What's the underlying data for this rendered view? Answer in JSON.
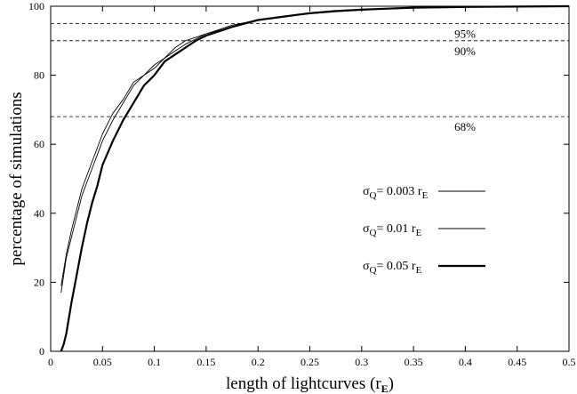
{
  "chart_data": {
    "type": "line",
    "title": "",
    "xlabel": "length of lightcurves",
    "xlabel_unit_main": "r",
    "xlabel_unit_sub": "E",
    "ylabel": "percentage of simulations",
    "xlim": [
      0,
      0.5
    ],
    "ylim": [
      0,
      100
    ],
    "xticks": [
      0,
      0.05,
      0.1,
      0.15,
      0.2,
      0.25,
      0.3,
      0.35,
      0.4,
      0.45,
      0.5
    ],
    "xtick_labels": [
      "0",
      "0.05",
      "0.1",
      "0.15",
      "0.2",
      "0.25",
      "0.3",
      "0.35",
      "0.4",
      "0.45",
      "0.5"
    ],
    "yticks": [
      0,
      20,
      40,
      60,
      80,
      100
    ],
    "ytick_labels": [
      "0",
      "20",
      "40",
      "60",
      "80",
      "100"
    ],
    "grid": false,
    "legend_position": "center-right",
    "reference_lines": [
      {
        "y": 100,
        "label": ""
      },
      {
        "y": 95,
        "label": "95%"
      },
      {
        "y": 90,
        "label": "90%"
      },
      {
        "y": 68,
        "label": "68%"
      }
    ],
    "series": [
      {
        "label_prefix": "σ",
        "label_sub": "Q",
        "label_value": "= 0.003 r",
        "label_unit_sub": "E",
        "line_weight": "thin",
        "x": [
          0.01,
          0.015,
          0.02,
          0.025,
          0.03,
          0.035,
          0.04,
          0.045,
          0.05,
          0.06,
          0.07,
          0.08,
          0.09,
          0.1,
          0.11,
          0.12,
          0.13,
          0.14,
          0.15,
          0.175,
          0.2,
          0.225,
          0.25,
          0.275,
          0.3,
          0.325,
          0.35,
          0.4,
          0.45,
          0.5
        ],
        "y": [
          19,
          28,
          35,
          41,
          47,
          51,
          55,
          59,
          63,
          69,
          73,
          78,
          80,
          83,
          85,
          88,
          90,
          91,
          92,
          94.5,
          96,
          97,
          98,
          98.5,
          99,
          99.3,
          99.6,
          99.8,
          99.9,
          100
        ]
      },
      {
        "label_prefix": "σ",
        "label_sub": "Q",
        "label_value": "= 0.01 r",
        "label_unit_sub": "E",
        "line_weight": "thin",
        "x": [
          0.01,
          0.015,
          0.02,
          0.025,
          0.03,
          0.035,
          0.04,
          0.045,
          0.05,
          0.06,
          0.07,
          0.08,
          0.09,
          0.1,
          0.11,
          0.12,
          0.13,
          0.14,
          0.15,
          0.175,
          0.2,
          0.225,
          0.25,
          0.275,
          0.3,
          0.325,
          0.35,
          0.4,
          0.45,
          0.5
        ],
        "y": [
          17,
          27,
          33,
          39,
          45,
          49,
          53,
          57,
          61,
          67,
          72,
          77,
          80,
          82,
          85,
          87,
          89,
          90.5,
          92,
          94,
          96,
          97,
          97.8,
          98.4,
          98.9,
          99.2,
          99.5,
          99.8,
          99.9,
          100
        ]
      },
      {
        "label_prefix": "σ",
        "label_sub": "Q",
        "label_value": "= 0.05 r",
        "label_unit_sub": "E",
        "line_weight": "thick",
        "x": [
          0.01,
          0.0125,
          0.015,
          0.02,
          0.025,
          0.03,
          0.035,
          0.04,
          0.045,
          0.05,
          0.06,
          0.07,
          0.08,
          0.09,
          0.1,
          0.11,
          0.12,
          0.13,
          0.14,
          0.15,
          0.175,
          0.2,
          0.225,
          0.25,
          0.275,
          0.3,
          0.325,
          0.35,
          0.4,
          0.45,
          0.5
        ],
        "y": [
          0,
          2,
          5,
          14,
          22,
          30,
          37,
          43,
          48,
          54,
          61,
          67,
          72,
          77,
          80,
          84,
          86,
          88,
          90,
          91.5,
          94,
          96,
          97,
          98,
          98.6,
          99,
          99.3,
          99.6,
          99.8,
          99.9,
          100
        ]
      }
    ]
  }
}
